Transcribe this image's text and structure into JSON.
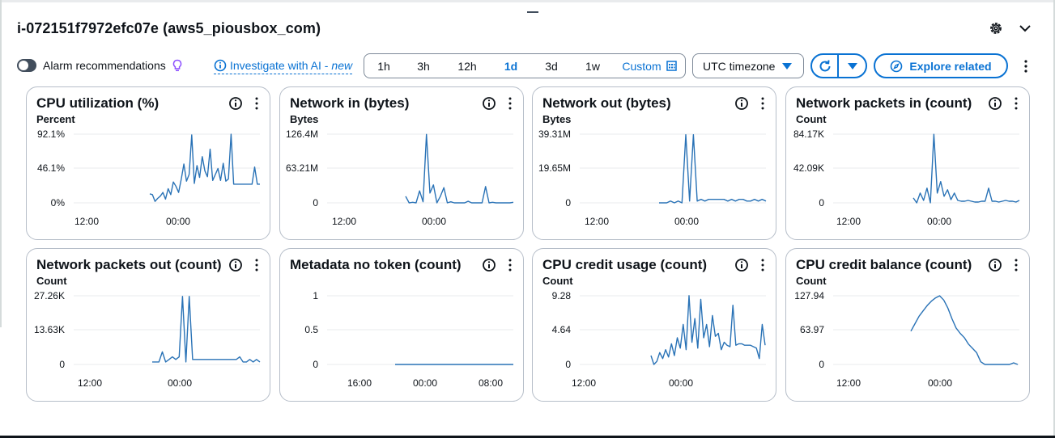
{
  "instance_title": "i-072151f7972efc07e (aws5_piousbox_com)",
  "toolbar": {
    "alarm_label": "Alarm recommendations",
    "ai_label": "Investigate with AI - ",
    "ai_new": "new",
    "ranges": [
      "1h",
      "3h",
      "12h",
      "1d",
      "3d",
      "1w"
    ],
    "active_range": "1d",
    "custom_label": "Custom",
    "timezone": "UTC timezone",
    "explore_label": "Explore related"
  },
  "colors": {
    "accent": "#0972d3",
    "series": "#2972b6",
    "text": "#0f141a",
    "grid": "#e9ebed"
  },
  "icons": [
    "gear-icon",
    "chevron-down-icon",
    "lightbulb-icon",
    "info-icon",
    "calendar-icon",
    "refresh-icon",
    "caret-down-icon",
    "compass-icon",
    "kebab-icon"
  ],
  "cards": [
    {
      "title": "CPU utilization (%)",
      "unit": "Percent",
      "y_ticks": [
        "92.1%",
        "46.1%",
        "0%"
      ],
      "x_ticks": [
        "12:00",
        "00:00"
      ],
      "chart_data": {
        "type": "line",
        "ylim": [
          0,
          92.1
        ],
        "series": [
          {
            "values": [
              12,
              11,
              2,
              6,
              9,
              14,
              5,
              19,
              11,
              28,
              22,
              14,
              32,
              52,
              29,
              38,
              91,
              26,
              50,
              34,
              62,
              43,
              35,
              72,
              30,
              38,
              46,
              30,
              53,
              29,
              32,
              92,
              25,
              25,
              25,
              25,
              25,
              25,
              25,
              25,
              48,
              25,
              25
            ]
          }
        ]
      }
    },
    {
      "title": "Network in (bytes)",
      "unit": "Bytes",
      "y_ticks": [
        "126.4M",
        "63.21M",
        "0"
      ],
      "x_ticks": [
        "12:00",
        "00:00"
      ],
      "chart_data": {
        "type": "line",
        "ylim": [
          0,
          126.4
        ],
        "series": [
          {
            "values": [
              12,
              0,
              1,
              0,
              22,
              2,
              126,
              18,
              33,
              0,
              12,
              28,
              0,
              2,
              0,
              0,
              0,
              0,
              3,
              0,
              0,
              0,
              0,
              30,
              0,
              1,
              0,
              0,
              0,
              0,
              0,
              1
            ]
          }
        ]
      }
    },
    {
      "title": "Network out (bytes)",
      "unit": "Bytes",
      "y_ticks": [
        "39.31M",
        "19.65M",
        "0"
      ],
      "x_ticks": [
        "12:00",
        "00:00"
      ],
      "chart_data": {
        "type": "line",
        "ylim": [
          0,
          39.31
        ],
        "series": [
          {
            "values": [
              0,
              0,
              0,
              1,
              0,
              1,
              0,
              39,
              1,
              39,
              1,
              2,
              1,
              2,
              2,
              2,
              2,
              2,
              1,
              2,
              1,
              2,
              2,
              1,
              1,
              2,
              1,
              2,
              1
            ]
          }
        ]
      }
    },
    {
      "title": "Network packets in (count)",
      "unit": "Count",
      "y_ticks": [
        "84.17K",
        "42.09K",
        "0"
      ],
      "x_ticks": [
        "12:00",
        "00:00"
      ],
      "chart_data": {
        "type": "line",
        "ylim": [
          0,
          84.17
        ],
        "series": [
          {
            "values": [
              6,
              0,
              12,
              3,
              18,
              0,
              84,
              12,
              26,
              8,
              16,
              4,
              12,
              3,
              2,
              2,
              3,
              2,
              1,
              1,
              2,
              2,
              18,
              2,
              2,
              1,
              2,
              3,
              2,
              2,
              1,
              3
            ]
          }
        ]
      }
    },
    {
      "title": "Network packets out (count)",
      "unit": "Count",
      "y_ticks": [
        "27.26K",
        "13.63K",
        "0"
      ],
      "x_ticks": [
        "12:00",
        "00:00"
      ],
      "chart_data": {
        "type": "line",
        "ylim": [
          0,
          27.26
        ],
        "series": [
          {
            "values": [
              1,
              1,
              1,
              5,
              1,
              2,
              3,
              2,
              3,
              27,
              1,
              27,
              2,
              2,
              2,
              2,
              2,
              2,
              2,
              2,
              2,
              2,
              2,
              2,
              2,
              2,
              3,
              1,
              1,
              2,
              1,
              2,
              1
            ]
          }
        ]
      }
    },
    {
      "title": "Metadata no token (count)",
      "unit": "",
      "y_ticks": [
        "1",
        "0.5",
        "0"
      ],
      "x_ticks": [
        "16:00",
        "00:00",
        "08:00"
      ],
      "chart_data": {
        "type": "line",
        "ylim": [
          0,
          1
        ],
        "series": [
          {
            "values": [
              0,
              0
            ]
          }
        ]
      }
    },
    {
      "title": "CPU credit usage (count)",
      "unit": "Count",
      "y_ticks": [
        "9.28",
        "4.64",
        "0"
      ],
      "x_ticks": [
        "12:00",
        "00:00"
      ],
      "chart_data": {
        "type": "line",
        "ylim": [
          0,
          9.28
        ],
        "series": [
          {
            "values": [
              1.2,
              0,
              0.4,
              1.6,
              0.8,
              2.0,
              1.0,
              2.8,
              1.2,
              3.6,
              2.2,
              5.4,
              2.0,
              9.3,
              3.0,
              6.2,
              2.2,
              8.8,
              3.6,
              5.4,
              2.4,
              6.6,
              3.8,
              4.2,
              2.0,
              3.0,
              2.6,
              2.4,
              8.0,
              2.6,
              2.8,
              2.8,
              2.6,
              2.6,
              2.6,
              2.4,
              2.2,
              0.8,
              5.4,
              2.6
            ]
          }
        ]
      }
    },
    {
      "title": "CPU credit balance (count)",
      "unit": "Count",
      "y_ticks": [
        "127.94",
        "63.97",
        "0"
      ],
      "x_ticks": [
        "12:00",
        "00:00"
      ],
      "chart_data": {
        "type": "line",
        "ylim": [
          0,
          127.94
        ],
        "series": [
          {
            "values": [
              62,
              76,
              90,
              100,
              110,
              118,
              124,
              127.9,
              120,
              105,
              85,
              68,
              58,
              50,
              38,
              30,
              22,
              5,
              0,
              0,
              0,
              0,
              0,
              0,
              0,
              3,
              0
            ]
          }
        ]
      }
    }
  ]
}
